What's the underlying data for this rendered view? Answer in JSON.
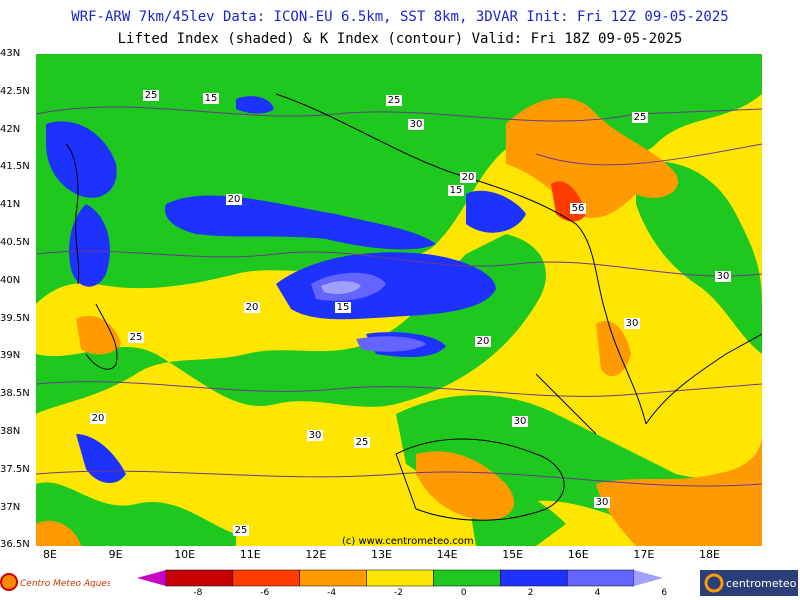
{
  "header": {
    "line1": "WRF-ARW 7km/45lev   Data: ICON-EU 6.5km, SST 8km, 3DVAR   Init: Fri 12Z 09-05-2025",
    "line2": "Lifted Index (shaded) & K Index (contour)  Valid: Fri 18Z 09-05-2025"
  },
  "lat_labels": [
    "43N",
    "42.5N",
    "42N",
    "41.5N",
    "41N",
    "40.5N",
    "40N",
    "39.5N",
    "39N",
    "38.5N",
    "38N",
    "37.5N",
    "37N",
    "36.5N"
  ],
  "lon_labels": [
    "8E",
    "9E",
    "10E",
    "11E",
    "12E",
    "13E",
    "14E",
    "15E",
    "16E",
    "17E",
    "18E"
  ],
  "k_index_labels": [
    "25",
    "15",
    "25",
    "30",
    "25",
    "20",
    "15",
    "20",
    "56",
    "30",
    "30",
    "20",
    "15",
    "20",
    "25",
    "20",
    "30",
    "25",
    "30",
    "30",
    "25"
  ],
  "watermark": "(c) www.centrometeo.com",
  "colorbar": {
    "ticks": [
      "-8",
      "-6",
      "-4",
      "-2",
      "0",
      "2",
      "4",
      "6"
    ],
    "colors": [
      "#c800c8",
      "#c80000",
      "#ff3c00",
      "#ff9a00",
      "#ffe600",
      "#1ec81e",
      "#1e32ff",
      "#6464ff",
      "#a0a0ff"
    ]
  },
  "logos": {
    "left": "Centro Meteo Aquesio",
    "right": "centrometeo"
  },
  "palette": {
    "yellow": "#ffe600",
    "orange": "#ff9a00",
    "green": "#1ec81e",
    "blue": "#1e32ff",
    "lightblue": "#6464ff",
    "sea_contour": "#7878a0"
  }
}
